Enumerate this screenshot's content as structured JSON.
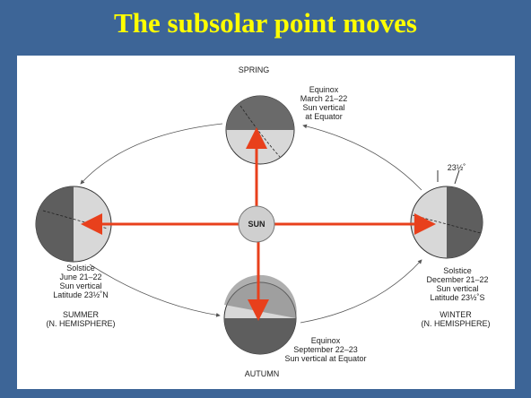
{
  "title": "The subsolar point moves",
  "diagram": {
    "sun": "SUN",
    "spring": {
      "season": "SPRING",
      "lines": [
        "Equinox",
        "March 21–22",
        "Sun vertical",
        "at Equator"
      ]
    },
    "summer": {
      "lines": [
        "Solstice",
        "June 21–22",
        "Sun vertical",
        "Latitude 23½˚N"
      ],
      "season": [
        "SUMMER",
        "(N. HEMISPHERE)"
      ]
    },
    "winter": {
      "tilt": "23½˚",
      "lines": [
        "Solstice",
        "December 21–22",
        "Sun vertical",
        "Latitude 23½˚S"
      ],
      "season": [
        "WINTER",
        "(N. HEMISPHERE)"
      ]
    },
    "autumn": {
      "lines": [
        "Equinox",
        "September 22–23",
        "Sun vertical at Equator"
      ],
      "season": "AUTUMN"
    }
  }
}
